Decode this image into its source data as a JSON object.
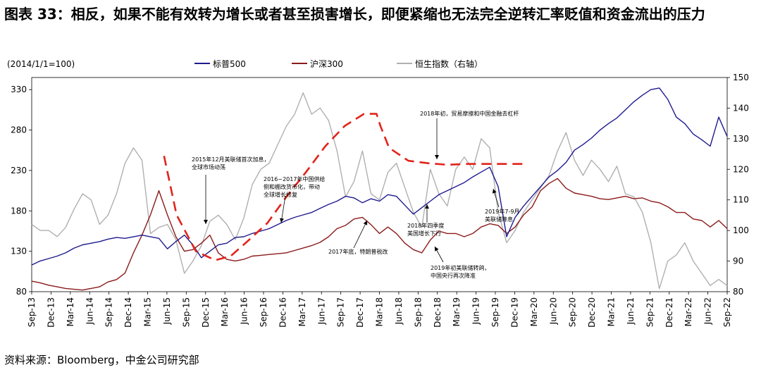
{
  "title": "图表 33：相反，如果不能有效转为增长或者甚至损害增长，即便紧缩也无法完全逆转汇率贬值和资金流出的压力",
  "source": "资料来源：Bloomberg，中金公司研究部",
  "chart_data": {
    "type": "line",
    "base_note": "(2014/1/1=100)",
    "x_ticks": [
      "Sep-13",
      "Dec-13",
      "Mar-14",
      "Jun-14",
      "Sep-14",
      "Dec-14",
      "Mar-15",
      "Jun-15",
      "Sep-15",
      "Dec-15",
      "Mar-16",
      "Jun-16",
      "Sep-16",
      "Dec-16",
      "Mar-17",
      "Jun-17",
      "Sep-17",
      "Dec-17",
      "Mar-18",
      "Jun-18",
      "Sep-18",
      "Dec-18",
      "Mar-19",
      "Jun-19",
      "Sep-19",
      "Dec-19",
      "Mar-20",
      "Jun-20",
      "Sep-20",
      "Dec-20",
      "Mar-21",
      "Jun-21",
      "Sep-21",
      "Dec-21",
      "Mar-22",
      "Jun-22",
      "Sep-22"
    ],
    "y_left": {
      "ticks": [
        80,
        130,
        180,
        230,
        280,
        330
      ],
      "range": [
        80,
        345
      ]
    },
    "y_right": {
      "ticks": [
        80,
        90,
        100,
        110,
        120,
        130,
        140,
        150
      ],
      "range": [
        80,
        150
      ]
    },
    "series": [
      {
        "name": "标普500",
        "axis": "left",
        "color": "#1f1a8f",
        "values": [
          113,
          118,
          121,
          124,
          128,
          134,
          138,
          140,
          142,
          145,
          147,
          146,
          148,
          150,
          148,
          146,
          133,
          142,
          150,
          138,
          122,
          130,
          138,
          140,
          147,
          148,
          152,
          155,
          158,
          163,
          168,
          172,
          175,
          178,
          183,
          188,
          192,
          198,
          196,
          190,
          195,
          192,
          200,
          198,
          187,
          176,
          184,
          192,
          200,
          205,
          210,
          215,
          222,
          228,
          234,
          210,
          148,
          172,
          186,
          198,
          210,
          222,
          230,
          240,
          255,
          262,
          270,
          280,
          288,
          295,
          305,
          315,
          323,
          330,
          332,
          318,
          296,
          288,
          275,
          268,
          260,
          296,
          272
        ]
      },
      {
        "name": "沪深300",
        "axis": "left",
        "color": "#8b1a1a",
        "values": [
          93,
          91,
          88,
          86,
          84,
          83,
          82,
          84,
          86,
          92,
          95,
          103,
          128,
          150,
          175,
          205,
          175,
          148,
          130,
          132,
          140,
          150,
          128,
          120,
          118,
          120,
          124,
          125,
          126,
          127,
          128,
          131,
          134,
          137,
          141,
          148,
          158,
          162,
          170,
          172,
          163,
          152,
          160,
          152,
          140,
          132,
          128,
          144,
          155,
          152,
          152,
          148,
          152,
          160,
          164,
          162,
          152,
          160,
          175,
          185,
          205,
          214,
          220,
          208,
          202,
          200,
          198,
          195,
          194,
          196,
          198,
          195,
          196,
          192,
          190,
          185,
          178,
          178,
          170,
          168,
          160,
          168,
          158
        ]
      },
      {
        "name": "恒生指数（右轴）",
        "axis": "right",
        "color": "#b0b0b0",
        "values": [
          102,
          100,
          100,
          98,
          101,
          107,
          112,
          110,
          102,
          105,
          112,
          122,
          127,
          123,
          99,
          101,
          102,
          97,
          86,
          90,
          95,
          103,
          105,
          102,
          97,
          104,
          115,
          120,
          122,
          128,
          134,
          138,
          145,
          138,
          140,
          136,
          126,
          111,
          116,
          126,
          112,
          110,
          119,
          122,
          114,
          106,
          101,
          120,
          112,
          108,
          120,
          124,
          120,
          130,
          127,
          106,
          96,
          100,
          106,
          110,
          114,
          118,
          126,
          132,
          123,
          118,
          123,
          120,
          116,
          121,
          112,
          111,
          106,
          96,
          81,
          90,
          92,
          96,
          90,
          86,
          82,
          84,
          82
        ]
      }
    ],
    "guide": {
      "name": "",
      "axis": "left",
      "color": "#e2231a",
      "style": "dashed",
      "x": [
        6.85,
        7.5,
        8.5,
        9.5,
        10.3,
        11.2,
        12.2,
        13.2,
        14.2,
        15.2,
        16.2,
        17.2,
        17.85,
        18.05,
        18.5,
        19.5,
        20.5,
        21.5,
        22.5,
        23.5,
        24.5,
        25.5
      ],
      "values": [
        248,
        175,
        130,
        119,
        124,
        143,
        165,
        198,
        228,
        260,
        285,
        300,
        300,
        285,
        258,
        242,
        239,
        237,
        238,
        238,
        238,
        238
      ]
    },
    "annotations": [
      {
        "text": "2015年12月美联储首次加息，",
        "line2": "全球市场动荡"
      },
      {
        "text": "2016~2017年中国供给",
        "line2": "侧和棚改货币化，带动",
        "line3": "全球增长修复"
      },
      {
        "text": "2017年底，特朗普税改"
      },
      {
        "text": "2018年初，贸易摩擦和中国金融去杠杆"
      },
      {
        "text": "2018年四季度",
        "line2": "美国增长下行"
      },
      {
        "text": "2019年初美联储转鸽，",
        "line2": "中国央行再次降准"
      },
      {
        "text": "2019年7-9月",
        "line2": "美联储降息"
      }
    ]
  }
}
